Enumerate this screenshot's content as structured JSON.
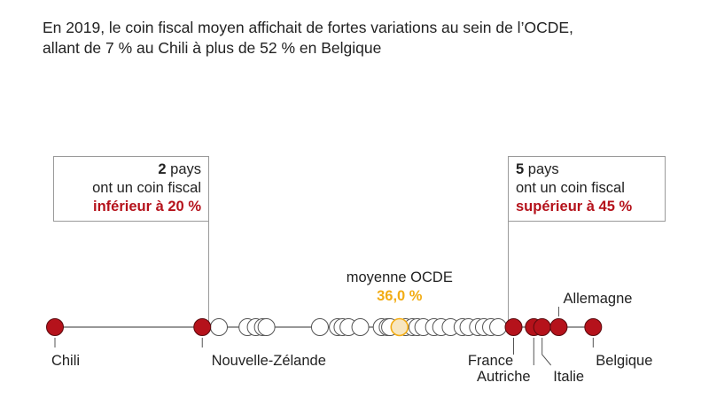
{
  "headline": {
    "line1": "En 2019, le coin fiscal moyen affichait de fortes variations au sein de l’OCDE,",
    "line2": "allant de 7 % au Chili à plus de 52 % en Belgique"
  },
  "callouts": {
    "low": {
      "count": "2",
      "count_suffix": " pays",
      "line2": "ont un coin fiscal",
      "emph": "inférieur à 20 %"
    },
    "high": {
      "count": "5",
      "count_suffix": " pays",
      "line2": "ont un coin fiscal",
      "emph": "supérieur à 45 %"
    }
  },
  "chart_data": {
    "type": "scatter",
    "title": "En 2019, le coin fiscal moyen affichait de fortes variations au sein de l’OCDE, allant de 7 % au Chili à plus de 52 % en Belgique",
    "xlim": [
      7,
      52.5
    ],
    "average": {
      "label": "moyenne OCDE",
      "value": 36.0,
      "value_label": "36,0 %"
    },
    "thresholds": {
      "low": 20,
      "high": 45
    },
    "highlighted": [
      {
        "name": "Chili",
        "value": 7.0
      },
      {
        "name": "Nouvelle-Zélande",
        "value": 19.4
      },
      {
        "name": "France",
        "value": 45.6
      },
      {
        "name": "Autriche",
        "value": 47.3
      },
      {
        "name": "Italie",
        "value": 48.0
      },
      {
        "name": "Allemagne",
        "value": 49.4
      },
      {
        "name": "Belgique",
        "value": 52.3
      }
    ],
    "others": [
      20.8,
      23.2,
      23.9,
      24.5,
      24.8,
      29.3,
      30.8,
      31.2,
      31.7,
      32.7,
      34.5,
      35.0,
      35.2,
      36.5,
      37.1,
      37.5,
      38.0,
      38.9,
      39.5,
      40.3,
      41.3,
      41.8,
      42.6,
      43.1,
      43.7,
      44.3
    ],
    "colors": {
      "highlight": "#b5121b",
      "average": "#f2ac14",
      "average_fill": "#f7e6c0",
      "other_fill": "#ffffff",
      "line": "#777777"
    }
  }
}
